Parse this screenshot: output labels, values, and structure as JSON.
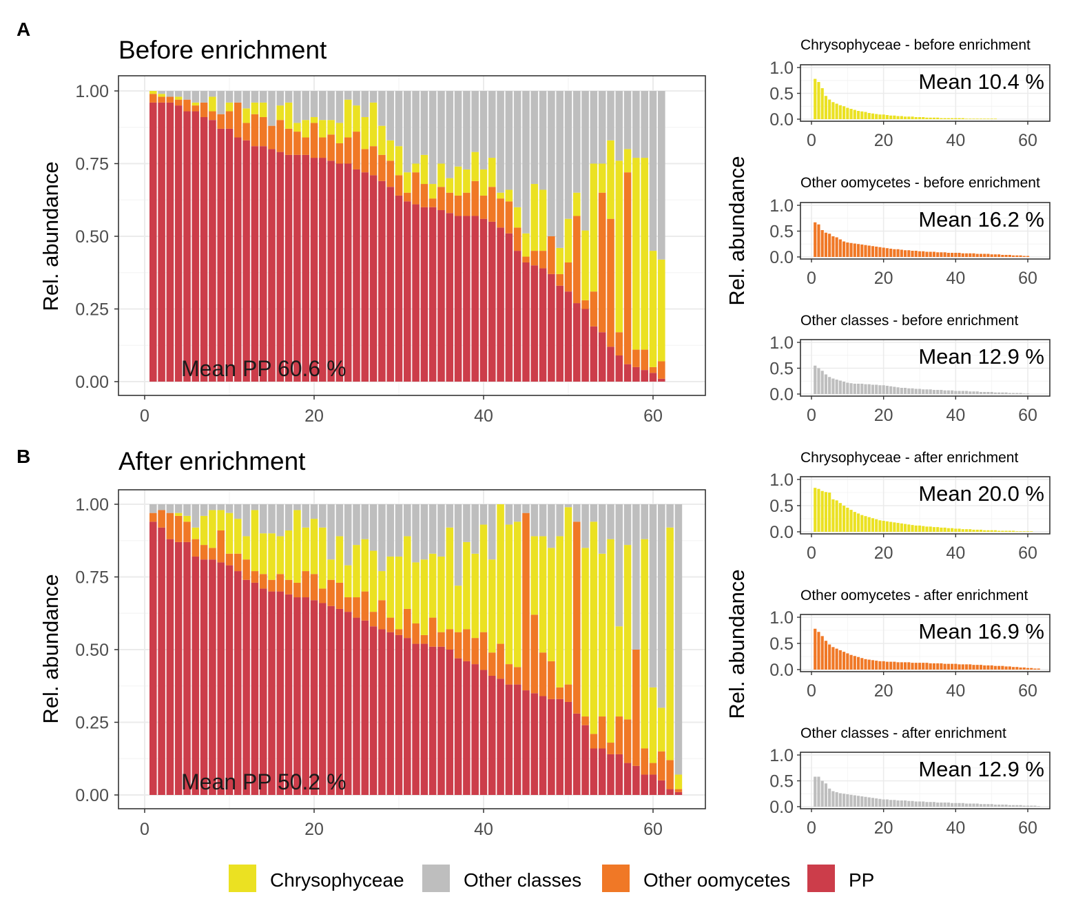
{
  "colors": {
    "pp": "#cc3d4a",
    "oomycetes": "#f07826",
    "chrysophyceae": "#ebe122",
    "other": "#bebebe",
    "grid": "#ebebeb",
    "frame": "#333333",
    "axis_text": "#4d4d4d"
  },
  "legend": {
    "items": [
      {
        "key": "chrysophyceae",
        "label": "Chrysophyceae"
      },
      {
        "key": "other",
        "label": "Other classes"
      },
      {
        "key": "oomycetes",
        "label": "Other oomycetes"
      },
      {
        "key": "pp",
        "label": "PP"
      }
    ]
  },
  "ylabel": "Rel. abundance",
  "chart_data": [
    {
      "id": "A",
      "panel_label": "A",
      "type": "bar",
      "stacked": true,
      "title": "Before enrichment",
      "annotation": "Mean PP 60.6 %",
      "xlabel": "",
      "ylabel": "Rel. abundance",
      "xlim": [
        -1.5,
        66
      ],
      "ylim": [
        0,
        1
      ],
      "x_ticks": [
        0,
        20,
        40,
        60
      ],
      "y_ticks": [
        "0.00",
        "0.25",
        "0.50",
        "0.75",
        "1.00"
      ],
      "series": [
        {
          "name": "PP",
          "key": "pp",
          "values": [
            0.96,
            0.96,
            0.96,
            0.95,
            0.93,
            0.93,
            0.91,
            0.9,
            0.87,
            0.87,
            0.84,
            0.83,
            0.81,
            0.81,
            0.8,
            0.79,
            0.78,
            0.78,
            0.78,
            0.77,
            0.77,
            0.76,
            0.75,
            0.75,
            0.73,
            0.72,
            0.71,
            0.69,
            0.67,
            0.64,
            0.62,
            0.61,
            0.6,
            0.6,
            0.59,
            0.58,
            0.57,
            0.57,
            0.57,
            0.56,
            0.55,
            0.53,
            0.51,
            0.45,
            0.41,
            0.4,
            0.39,
            0.37,
            0.33,
            0.31,
            0.27,
            0.25,
            0.19,
            0.17,
            0.12,
            0.09,
            0.06,
            0.05,
            0.04,
            0.03,
            0.01
          ]
        },
        {
          "name": "Other oomycetes",
          "key": "oomycetes",
          "values": [
            0.03,
            0.02,
            0.02,
            0.02,
            0.04,
            0.02,
            0.05,
            0.03,
            0.05,
            0.06,
            0.12,
            0.06,
            0.11,
            0.1,
            0.08,
            0.11,
            0.09,
            0.08,
            0.06,
            0.12,
            0.07,
            0.09,
            0.07,
            0.09,
            0.13,
            0.08,
            0.1,
            0.09,
            0.09,
            0.07,
            0.03,
            0.11,
            0.08,
            0.03,
            0.08,
            0.07,
            0.07,
            0.08,
            0.12,
            0.08,
            0.12,
            0.1,
            0.11,
            0.08,
            0.02,
            0.05,
            0.06,
            0.13,
            0.04,
            0.1,
            0.3,
            0.03,
            0.12,
            0.48,
            0.44,
            0.08,
            0.66,
            0.06,
            0.07,
            0.02,
            0.06
          ]
        },
        {
          "name": "Chrysophyceae",
          "key": "chrysophyceae",
          "values": [
            0.01,
            0.01,
            0.0,
            0.01,
            0.0,
            0.01,
            0.0,
            0.05,
            0.0,
            0.03,
            0.0,
            0.05,
            0.04,
            0.05,
            0.0,
            0.05,
            0.09,
            0.03,
            0.06,
            0.02,
            0.06,
            0.05,
            0.07,
            0.13,
            0.09,
            0.11,
            0.15,
            0.1,
            0.07,
            0.1,
            0.07,
            0.03,
            0.1,
            0.05,
            0.08,
            0.05,
            0.1,
            0.08,
            0.1,
            0.09,
            0.1,
            0.02,
            0.04,
            0.07,
            0.08,
            0.23,
            0.21,
            0.0,
            0.09,
            0.15,
            0.08,
            0.24,
            0.44,
            0.1,
            0.27,
            0.59,
            0.08,
            0.66,
            0.66,
            0.4,
            0.35
          ]
        },
        {
          "name": "Other classes",
          "key": "other",
          "values": [
            0.0,
            0.01,
            0.02,
            0.02,
            0.03,
            0.04,
            0.04,
            0.02,
            0.08,
            0.04,
            0.04,
            0.06,
            0.04,
            0.04,
            0.12,
            0.05,
            0.04,
            0.11,
            0.1,
            0.09,
            0.1,
            0.1,
            0.11,
            0.03,
            0.05,
            0.09,
            0.04,
            0.12,
            0.17,
            0.19,
            0.28,
            0.25,
            0.22,
            0.32,
            0.25,
            0.3,
            0.26,
            0.27,
            0.21,
            0.27,
            0.23,
            0.35,
            0.34,
            0.4,
            0.49,
            0.32,
            0.34,
            0.5,
            0.54,
            0.44,
            0.35,
            0.48,
            0.25,
            0.25,
            0.17,
            0.24,
            0.2,
            0.23,
            0.23,
            0.55,
            0.58
          ]
        }
      ]
    },
    {
      "id": "A1",
      "type": "bar",
      "title": "Chrysophyceae - before enrichment",
      "annotation": "Mean 10.4 %",
      "color_key": "chrysophyceae",
      "xlim": [
        -3,
        66
      ],
      "ylim": [
        0,
        1
      ],
      "x_ticks": [
        0,
        20,
        40,
        60
      ],
      "y_ticks": [
        "0.0",
        "0.5",
        "1.0"
      ],
      "values": [
        0.78,
        0.72,
        0.6,
        0.45,
        0.38,
        0.33,
        0.3,
        0.27,
        0.25,
        0.22,
        0.2,
        0.18,
        0.16,
        0.15,
        0.14,
        0.12,
        0.11,
        0.1,
        0.09,
        0.09,
        0.08,
        0.07,
        0.07,
        0.06,
        0.06,
        0.05,
        0.05,
        0.05,
        0.04,
        0.04,
        0.04,
        0.03,
        0.03,
        0.03,
        0.03,
        0.02,
        0.02,
        0.02,
        0.02,
        0.02,
        0.02,
        0.02,
        0.01,
        0.01,
        0.01,
        0.01,
        0.01,
        0.01,
        0.01,
        0.01,
        0.01
      ]
    },
    {
      "id": "A2",
      "type": "bar",
      "title": "Other oomycetes - before enrichment",
      "annotation": "Mean 16.2 %",
      "color_key": "oomycetes",
      "xlim": [
        -3,
        66
      ],
      "ylim": [
        0,
        1
      ],
      "x_ticks": [
        0,
        20,
        40,
        60
      ],
      "y_ticks": [
        "0.0",
        "0.5",
        "1.0"
      ],
      "values": [
        0.67,
        0.63,
        0.52,
        0.47,
        0.45,
        0.4,
        0.38,
        0.34,
        0.3,
        0.28,
        0.27,
        0.26,
        0.25,
        0.24,
        0.23,
        0.22,
        0.21,
        0.2,
        0.19,
        0.18,
        0.17,
        0.16,
        0.15,
        0.15,
        0.14,
        0.13,
        0.13,
        0.12,
        0.12,
        0.11,
        0.11,
        0.1,
        0.1,
        0.1,
        0.09,
        0.09,
        0.09,
        0.08,
        0.08,
        0.08,
        0.08,
        0.07,
        0.07,
        0.07,
        0.07,
        0.06,
        0.06,
        0.06,
        0.06,
        0.05,
        0.05,
        0.05,
        0.04,
        0.04,
        0.04,
        0.03,
        0.03,
        0.03,
        0.02,
        0.02
      ]
    },
    {
      "id": "A3",
      "type": "bar",
      "title": "Other classes - before enrichment",
      "annotation": "Mean 12.9 %",
      "color_key": "other",
      "xlim": [
        -3,
        66
      ],
      "ylim": [
        0,
        1
      ],
      "x_ticks": [
        0,
        20,
        40,
        60
      ],
      "y_ticks": [
        "0.0",
        "0.5",
        "1.0"
      ],
      "values": [
        0.55,
        0.5,
        0.45,
        0.38,
        0.33,
        0.3,
        0.28,
        0.26,
        0.24,
        0.22,
        0.21,
        0.2,
        0.2,
        0.2,
        0.19,
        0.19,
        0.18,
        0.18,
        0.17,
        0.17,
        0.16,
        0.15,
        0.14,
        0.13,
        0.12,
        0.12,
        0.11,
        0.11,
        0.1,
        0.1,
        0.09,
        0.09,
        0.09,
        0.08,
        0.08,
        0.08,
        0.07,
        0.07,
        0.07,
        0.06,
        0.06,
        0.06,
        0.06,
        0.05,
        0.05,
        0.05,
        0.04,
        0.04,
        0.04,
        0.04,
        0.03,
        0.03,
        0.03,
        0.03,
        0.02,
        0.02,
        0.02,
        0.02,
        0.01,
        0.01
      ]
    },
    {
      "id": "B",
      "panel_label": "B",
      "type": "bar",
      "stacked": true,
      "title": "After enrichment",
      "annotation": "Mean PP 50.2 %",
      "xlabel": "",
      "ylabel": "Rel. abundance",
      "xlim": [
        -1.5,
        66
      ],
      "ylim": [
        0,
        1
      ],
      "x_ticks": [
        0,
        20,
        40,
        60
      ],
      "y_ticks": [
        "0.00",
        "0.25",
        "0.50",
        "0.75",
        "1.00"
      ],
      "series": [
        {
          "name": "PP",
          "key": "pp",
          "values": [
            0.94,
            0.92,
            0.88,
            0.87,
            0.87,
            0.82,
            0.81,
            0.81,
            0.8,
            0.79,
            0.77,
            0.74,
            0.73,
            0.71,
            0.7,
            0.7,
            0.69,
            0.68,
            0.68,
            0.67,
            0.66,
            0.65,
            0.64,
            0.63,
            0.61,
            0.6,
            0.58,
            0.57,
            0.56,
            0.55,
            0.54,
            0.52,
            0.52,
            0.51,
            0.51,
            0.5,
            0.47,
            0.46,
            0.45,
            0.43,
            0.41,
            0.4,
            0.38,
            0.38,
            0.36,
            0.35,
            0.34,
            0.33,
            0.33,
            0.32,
            0.28,
            0.24,
            0.16,
            0.16,
            0.14,
            0.14,
            0.11,
            0.1,
            0.07,
            0.07,
            0.05,
            0.02,
            0.01
          ]
        },
        {
          "name": "Other oomycetes",
          "key": "oomycetes",
          "values": [
            0.03,
            0.06,
            0.09,
            0.09,
            0.07,
            0.06,
            0.05,
            0.04,
            0.11,
            0.04,
            0.06,
            0.07,
            0.04,
            0.05,
            0.04,
            0.06,
            0.05,
            0.05,
            0.09,
            0.09,
            0.05,
            0.09,
            0.09,
            0.05,
            0.07,
            0.1,
            0.05,
            0.1,
            0.05,
            0.02,
            0.1,
            0.07,
            0.03,
            0.1,
            0.05,
            0.07,
            0.09,
            0.11,
            0.09,
            0.13,
            0.08,
            0.12,
            0.07,
            0.06,
            0.61,
            0.27,
            0.15,
            0.13,
            0.04,
            0.06,
            0.66,
            0.03,
            0.05,
            0.11,
            0.04,
            0.13,
            0.15,
            0.4,
            0.09,
            0.04,
            0.1,
            0.1,
            0.01
          ]
        },
        {
          "name": "Chrysophyceae",
          "key": "chrysophyceae",
          "values": [
            0.0,
            0.0,
            0.0,
            0.01,
            0.02,
            0.04,
            0.1,
            0.13,
            0.07,
            0.14,
            0.12,
            0.08,
            0.21,
            0.14,
            0.16,
            0.13,
            0.17,
            0.25,
            0.15,
            0.19,
            0.21,
            0.07,
            0.16,
            0.11,
            0.18,
            0.18,
            0.21,
            0.1,
            0.21,
            0.25,
            0.25,
            0.21,
            0.26,
            0.22,
            0.26,
            0.35,
            0.16,
            0.3,
            0.29,
            0.37,
            0.32,
            0.48,
            0.48,
            0.5,
            0.0,
            0.27,
            0.4,
            0.39,
            0.52,
            0.61,
            0.0,
            0.58,
            0.73,
            0.56,
            0.7,
            0.31,
            0.6,
            0.0,
            0.72,
            0.26,
            0.15,
            0.8,
            0.05
          ]
        },
        {
          "name": "Other classes",
          "key": "other",
          "values": [
            0.03,
            0.02,
            0.03,
            0.03,
            0.04,
            0.08,
            0.04,
            0.02,
            0.02,
            0.03,
            0.05,
            0.11,
            0.02,
            0.1,
            0.1,
            0.11,
            0.09,
            0.02,
            0.08,
            0.05,
            0.08,
            0.19,
            0.11,
            0.21,
            0.14,
            0.12,
            0.16,
            0.23,
            0.18,
            0.18,
            0.11,
            0.2,
            0.19,
            0.17,
            0.18,
            0.08,
            0.28,
            0.13,
            0.17,
            0.07,
            0.19,
            0.0,
            0.07,
            0.06,
            0.03,
            0.11,
            0.11,
            0.15,
            0.11,
            0.01,
            0.06,
            0.15,
            0.06,
            0.17,
            0.12,
            0.42,
            0.14,
            0.5,
            0.12,
            0.63,
            0.7,
            0.08,
            0.93
          ]
        }
      ]
    },
    {
      "id": "B1",
      "type": "bar",
      "title": "Chrysophyceae - after enrichment",
      "annotation": "Mean 20.0 %",
      "color_key": "chrysophyceae",
      "xlim": [
        -3,
        66
      ],
      "ylim": [
        0,
        1
      ],
      "x_ticks": [
        0,
        20,
        40,
        60
      ],
      "y_ticks": [
        "0.0",
        "0.5",
        "1.0"
      ],
      "values": [
        0.84,
        0.82,
        0.78,
        0.76,
        0.75,
        0.62,
        0.6,
        0.55,
        0.5,
        0.46,
        0.42,
        0.38,
        0.35,
        0.32,
        0.3,
        0.28,
        0.26,
        0.24,
        0.22,
        0.21,
        0.2,
        0.19,
        0.18,
        0.17,
        0.16,
        0.15,
        0.14,
        0.13,
        0.12,
        0.12,
        0.11,
        0.1,
        0.1,
        0.09,
        0.09,
        0.08,
        0.08,
        0.07,
        0.07,
        0.06,
        0.06,
        0.05,
        0.05,
        0.05,
        0.04,
        0.04,
        0.04,
        0.03,
        0.03,
        0.03,
        0.03,
        0.02,
        0.02,
        0.02,
        0.02,
        0.02,
        0.01,
        0.01,
        0.01,
        0.01,
        0.01
      ]
    },
    {
      "id": "B2",
      "type": "bar",
      "title": "Other oomycetes - after enrichment",
      "annotation": "Mean 16.9 %",
      "color_key": "oomycetes",
      "xlim": [
        -3,
        66
      ],
      "ylim": [
        0,
        1
      ],
      "x_ticks": [
        0,
        20,
        40,
        60
      ],
      "y_ticks": [
        "0.0",
        "0.5",
        "1.0"
      ],
      "values": [
        0.78,
        0.72,
        0.64,
        0.55,
        0.48,
        0.43,
        0.4,
        0.37,
        0.34,
        0.31,
        0.28,
        0.26,
        0.24,
        0.22,
        0.2,
        0.19,
        0.18,
        0.17,
        0.16,
        0.16,
        0.15,
        0.15,
        0.15,
        0.14,
        0.14,
        0.14,
        0.14,
        0.13,
        0.13,
        0.13,
        0.13,
        0.13,
        0.12,
        0.12,
        0.12,
        0.12,
        0.11,
        0.11,
        0.11,
        0.11,
        0.1,
        0.1,
        0.1,
        0.1,
        0.09,
        0.09,
        0.09,
        0.08,
        0.08,
        0.08,
        0.07,
        0.07,
        0.07,
        0.06,
        0.06,
        0.05,
        0.05,
        0.04,
        0.04,
        0.03,
        0.03,
        0.02,
        0.02
      ]
    },
    {
      "id": "B3",
      "type": "bar",
      "title": "Other classes - after enrichment",
      "annotation": "Mean 12.9 %",
      "color_key": "other",
      "xlim": [
        -3,
        66
      ],
      "ylim": [
        0,
        1
      ],
      "x_ticks": [
        0,
        20,
        40,
        60
      ],
      "y_ticks": [
        "0.0",
        "0.5",
        "1.0"
      ],
      "values": [
        0.58,
        0.58,
        0.5,
        0.45,
        0.35,
        0.3,
        0.28,
        0.26,
        0.25,
        0.24,
        0.23,
        0.22,
        0.21,
        0.2,
        0.19,
        0.18,
        0.17,
        0.16,
        0.15,
        0.14,
        0.14,
        0.13,
        0.13,
        0.12,
        0.12,
        0.12,
        0.11,
        0.11,
        0.1,
        0.1,
        0.1,
        0.09,
        0.09,
        0.09,
        0.08,
        0.08,
        0.08,
        0.08,
        0.07,
        0.07,
        0.07,
        0.07,
        0.06,
        0.06,
        0.06,
        0.06,
        0.05,
        0.05,
        0.05,
        0.05,
        0.04,
        0.04,
        0.04,
        0.04,
        0.03,
        0.03,
        0.03,
        0.03,
        0.02,
        0.02,
        0.02,
        0.02,
        0.01
      ]
    }
  ]
}
